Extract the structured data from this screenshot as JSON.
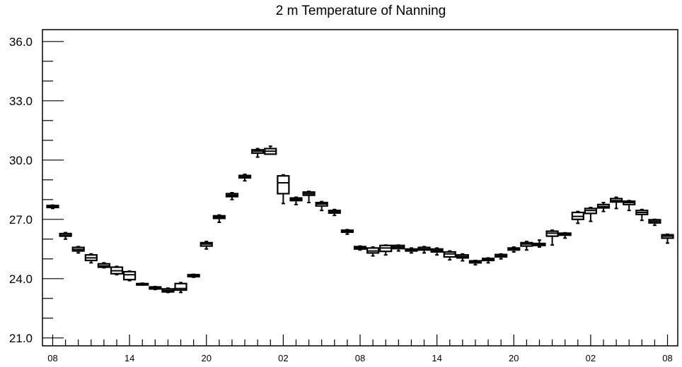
{
  "chart_data": {
    "type": "box",
    "title": "2 m Temperature of Nanning",
    "xlabel": "",
    "ylabel": "",
    "ylim": [
      20.6,
      36.6
    ],
    "y_ticks": [
      "21.0",
      "24.0",
      "27.0",
      "30.0",
      "33.0",
      "36.0"
    ],
    "y_tick_values": [
      21.0,
      24.0,
      27.0,
      30.0,
      33.0,
      36.0
    ],
    "x_tick_labels": [
      "08",
      "14",
      "20",
      "02",
      "08",
      "14",
      "20",
      "02",
      "08"
    ],
    "x_tick_hours": [
      0,
      6,
      12,
      18,
      24,
      30,
      36,
      42,
      48
    ],
    "xlim": [
      -0.8,
      48.8
    ],
    "color": "#000000",
    "boxes": [
      {
        "hour": 0,
        "whisker_low": 27.55,
        "q1": 27.6,
        "median": 27.65,
        "q3": 27.7,
        "whisker_high": 27.72
      },
      {
        "hour": 1,
        "whisker_low": 26.0,
        "q1": 26.15,
        "median": 26.2,
        "q3": 26.28,
        "whisker_high": 26.33
      },
      {
        "hour": 2,
        "whisker_low": 25.3,
        "q1": 25.4,
        "median": 25.48,
        "q3": 25.58,
        "whisker_high": 25.62
      },
      {
        "hour": 3,
        "whisker_low": 24.8,
        "q1": 24.92,
        "median": 25.05,
        "q3": 25.2,
        "whisker_high": 25.25
      },
      {
        "hour": 4,
        "whisker_low": 24.55,
        "q1": 24.58,
        "median": 24.65,
        "q3": 24.75,
        "whisker_high": 24.8
      },
      {
        "hour": 5,
        "whisker_low": 24.2,
        "q1": 24.25,
        "median": 24.4,
        "q3": 24.58,
        "whisker_high": 24.62
      },
      {
        "hour": 6,
        "whisker_low": 23.9,
        "q1": 23.95,
        "median": 24.2,
        "q3": 24.35,
        "whisker_high": 24.38
      },
      {
        "hour": 7,
        "whisker_low": 23.68,
        "q1": 23.68,
        "median": 23.72,
        "q3": 23.75,
        "whisker_high": 23.77
      },
      {
        "hour": 8,
        "whisker_low": 23.45,
        "q1": 23.48,
        "median": 23.52,
        "q3": 23.58,
        "whisker_high": 23.6
      },
      {
        "hour": 9,
        "whisker_low": 23.3,
        "q1": 23.33,
        "median": 23.4,
        "q3": 23.48,
        "whisker_high": 23.52
      },
      {
        "hour": 10,
        "whisker_low": 23.3,
        "q1": 23.42,
        "median": 23.5,
        "q3": 23.75,
        "whisker_high": 23.8
      },
      {
        "hour": 11,
        "whisker_low": 24.07,
        "q1": 24.1,
        "median": 24.15,
        "q3": 24.2,
        "whisker_high": 24.22
      },
      {
        "hour": 12,
        "whisker_low": 25.5,
        "q1": 25.65,
        "median": 25.75,
        "q3": 25.82,
        "whisker_high": 25.88
      },
      {
        "hour": 13,
        "whisker_low": 26.85,
        "q1": 27.05,
        "median": 27.12,
        "q3": 27.18,
        "whisker_high": 27.22
      },
      {
        "hour": 14,
        "whisker_low": 28.0,
        "q1": 28.15,
        "median": 28.22,
        "q3": 28.3,
        "whisker_high": 28.35
      },
      {
        "hour": 15,
        "whisker_low": 28.95,
        "q1": 29.1,
        "median": 29.15,
        "q3": 29.22,
        "whisker_high": 29.28
      },
      {
        "hour": 16,
        "whisker_low": 30.15,
        "q1": 30.35,
        "median": 30.45,
        "q3": 30.52,
        "whisker_high": 30.58
      },
      {
        "hour": 17,
        "whisker_low": 30.3,
        "q1": 30.3,
        "median": 30.45,
        "q3": 30.58,
        "whisker_high": 30.7
      },
      {
        "hour": 18,
        "whisker_low": 27.8,
        "q1": 28.3,
        "median": 28.85,
        "q3": 29.2,
        "whisker_high": 29.25
      },
      {
        "hour": 19,
        "whisker_low": 27.75,
        "q1": 27.95,
        "median": 28.02,
        "q3": 28.08,
        "whisker_high": 28.12
      },
      {
        "hour": 20,
        "whisker_low": 27.85,
        "q1": 28.22,
        "median": 28.3,
        "q3": 28.38,
        "whisker_high": 28.42
      },
      {
        "hour": 21,
        "whisker_low": 27.45,
        "q1": 27.68,
        "median": 27.78,
        "q3": 27.85,
        "whisker_high": 27.9
      },
      {
        "hour": 22,
        "whisker_low": 27.2,
        "q1": 27.32,
        "median": 27.38,
        "q3": 27.45,
        "whisker_high": 27.5
      },
      {
        "hour": 23,
        "whisker_low": 26.25,
        "q1": 26.35,
        "median": 26.4,
        "q3": 26.45,
        "whisker_high": 26.48
      },
      {
        "hour": 24,
        "whisker_low": 25.45,
        "q1": 25.5,
        "median": 25.55,
        "q3": 25.62,
        "whisker_high": 25.65
      },
      {
        "hour": 25,
        "whisker_low": 25.15,
        "q1": 25.3,
        "median": 25.4,
        "q3": 25.55,
        "whisker_high": 25.6
      },
      {
        "hour": 26,
        "whisker_low": 25.2,
        "q1": 25.38,
        "median": 25.55,
        "q3": 25.68,
        "whisker_high": 25.7
      },
      {
        "hour": 27,
        "whisker_low": 25.4,
        "q1": 25.52,
        "median": 25.6,
        "q3": 25.68,
        "whisker_high": 25.7
      },
      {
        "hour": 28,
        "whisker_low": 25.3,
        "q1": 25.4,
        "median": 25.45,
        "q3": 25.5,
        "whisker_high": 25.55
      },
      {
        "hour": 29,
        "whisker_low": 25.3,
        "q1": 25.45,
        "median": 25.5,
        "q3": 25.58,
        "whisker_high": 25.62
      },
      {
        "hour": 30,
        "whisker_low": 25.2,
        "q1": 25.35,
        "median": 25.42,
        "q3": 25.5,
        "whisker_high": 25.55
      },
      {
        "hour": 31,
        "whisker_low": 24.95,
        "q1": 25.1,
        "median": 25.25,
        "q3": 25.35,
        "whisker_high": 25.4
      },
      {
        "hour": 32,
        "whisker_low": 24.9,
        "q1": 25.05,
        "median": 25.12,
        "q3": 25.2,
        "whisker_high": 25.25
      },
      {
        "hour": 33,
        "whisker_low": 24.7,
        "q1": 24.8,
        "median": 24.85,
        "q3": 24.9,
        "whisker_high": 24.92
      },
      {
        "hour": 34,
        "whisker_low": 24.8,
        "q1": 24.92,
        "median": 24.97,
        "q3": 25.02,
        "whisker_high": 25.05
      },
      {
        "hour": 35,
        "whisker_low": 25.0,
        "q1": 25.1,
        "median": 25.15,
        "q3": 25.22,
        "whisker_high": 25.25
      },
      {
        "hour": 36,
        "whisker_low": 25.35,
        "q1": 25.45,
        "median": 25.5,
        "q3": 25.55,
        "whisker_high": 25.6
      },
      {
        "hour": 37,
        "whisker_low": 25.45,
        "q1": 25.65,
        "median": 25.75,
        "q3": 25.82,
        "whisker_high": 25.88
      },
      {
        "hour": 38,
        "whisker_low": 25.6,
        "q1": 25.68,
        "median": 25.72,
        "q3": 25.78,
        "whisker_high": 25.95
      },
      {
        "hour": 39,
        "whisker_low": 25.7,
        "q1": 26.15,
        "median": 26.3,
        "q3": 26.4,
        "whisker_high": 26.45
      },
      {
        "hour": 40,
        "whisker_low": 26.05,
        "q1": 26.2,
        "median": 26.25,
        "q3": 26.3,
        "whisker_high": 26.32
      },
      {
        "hour": 41,
        "whisker_low": 26.8,
        "q1": 27.0,
        "median": 27.15,
        "q3": 27.35,
        "whisker_high": 27.4
      },
      {
        "hour": 42,
        "whisker_low": 26.9,
        "q1": 27.3,
        "median": 27.45,
        "q3": 27.55,
        "whisker_high": 27.6
      },
      {
        "hour": 43,
        "whisker_low": 27.4,
        "q1": 27.58,
        "median": 27.65,
        "q3": 27.75,
        "whisker_high": 27.85
      },
      {
        "hour": 44,
        "whisker_low": 27.55,
        "q1": 27.88,
        "median": 27.95,
        "q3": 28.05,
        "whisker_high": 28.12
      },
      {
        "hour": 45,
        "whisker_low": 27.45,
        "q1": 27.75,
        "median": 27.85,
        "q3": 27.92,
        "whisker_high": 27.95
      },
      {
        "hour": 46,
        "whisker_low": 26.95,
        "q1": 27.25,
        "median": 27.35,
        "q3": 27.45,
        "whisker_high": 27.5
      },
      {
        "hour": 47,
        "whisker_low": 26.7,
        "q1": 26.82,
        "median": 26.9,
        "q3": 26.98,
        "whisker_high": 27.0
      },
      {
        "hour": 48,
        "whisker_low": 25.8,
        "q1": 26.05,
        "median": 26.15,
        "q3": 26.22,
        "whisker_high": 26.25
      }
    ]
  }
}
